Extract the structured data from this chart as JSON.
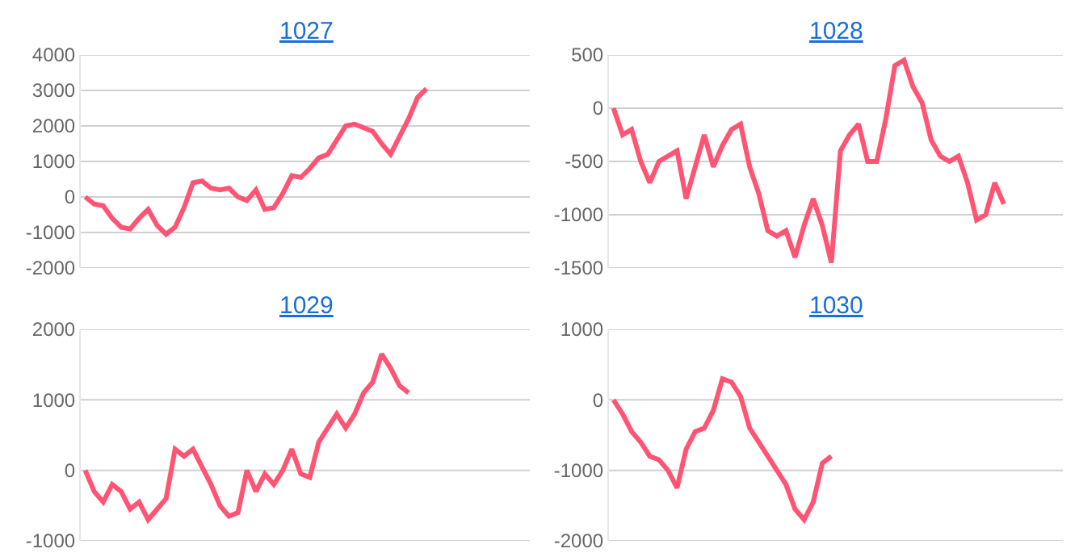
{
  "chart_data": [
    {
      "type": "line",
      "title": "1027",
      "categories": [
        null,
        null,
        null,
        null,
        null,
        null,
        null,
        null,
        null,
        null,
        null,
        null,
        null,
        null,
        null,
        null,
        null,
        null,
        null,
        null,
        null,
        null,
        null,
        null,
        null,
        null,
        null,
        null,
        null,
        null,
        null,
        null,
        null,
        null,
        null,
        null,
        null,
        null,
        null,
        null,
        null,
        null,
        null,
        null,
        null,
        null,
        null,
        null,
        null,
        null
      ],
      "ylim": [
        -2000,
        4000
      ],
      "yticks": [
        -2000,
        -1000,
        0,
        1000,
        2000,
        3000,
        4000
      ],
      "grid": "y",
      "tick_labels": "y",
      "marker": "none",
      "series": [
        {
          "color": "#ff5473",
          "values": [
            0,
            -200,
            -250,
            -600,
            -850,
            -900,
            -600,
            -350,
            -800,
            -1050,
            -850,
            -300,
            400,
            450,
            250,
            200,
            250,
            0,
            -100,
            200,
            -350,
            -300,
            100,
            600,
            550,
            800,
            1100,
            1200,
            1600,
            2000,
            2050,
            1950,
            1850,
            1500,
            1200,
            1700,
            2200,
            2800,
            3050,
            null,
            null,
            null,
            null,
            null,
            null,
            null,
            null,
            null,
            null,
            null
          ]
        }
      ]
    },
    {
      "type": "line",
      "title": "1028",
      "categories": [
        null,
        null,
        null,
        null,
        null,
        null,
        null,
        null,
        null,
        null,
        null,
        null,
        null,
        null,
        null,
        null,
        null,
        null,
        null,
        null,
        null,
        null,
        null,
        null,
        null,
        null,
        null,
        null,
        null,
        null,
        null,
        null,
        null,
        null,
        null,
        null,
        null,
        null,
        null,
        null,
        null,
        null,
        null,
        null,
        null,
        null,
        null,
        null,
        null,
        null
      ],
      "ylim": [
        -1500,
        500
      ],
      "yticks": [
        -1500,
        -1000,
        -500,
        0,
        500
      ],
      "grid": "y",
      "tick_labels": "y",
      "marker": "none",
      "series": [
        {
          "color": "#ff5473",
          "values": [
            0,
            -250,
            -200,
            -500,
            -700,
            -500,
            -450,
            -400,
            -850,
            -550,
            -250,
            -550,
            -350,
            -200,
            -150,
            -550,
            -800,
            -1150,
            -1200,
            -1150,
            -1400,
            -1100,
            -850,
            -1100,
            -1450,
            -400,
            -250,
            -150,
            -500,
            -500,
            -100,
            400,
            450,
            200,
            50,
            -300,
            -450,
            -500,
            -450,
            -700,
            -1050,
            -1000,
            -700,
            -900,
            null,
            null,
            null,
            null,
            null,
            null
          ]
        }
      ]
    },
    {
      "type": "line",
      "title": "1029",
      "categories": [
        null,
        null,
        null,
        null,
        null,
        null,
        null,
        null,
        null,
        null,
        null,
        null,
        null,
        null,
        null,
        null,
        null,
        null,
        null,
        null,
        null,
        null,
        null,
        null,
        null,
        null,
        null,
        null,
        null,
        null,
        null,
        null,
        null,
        null,
        null,
        null,
        null,
        null,
        null,
        null,
        null,
        null,
        null,
        null,
        null,
        null,
        null,
        null,
        null,
        null
      ],
      "ylim": [
        -1000,
        2000
      ],
      "yticks": [
        -1000,
        0,
        1000,
        2000
      ],
      "grid": "y",
      "tick_labels": "y",
      "marker": "none",
      "series": [
        {
          "color": "#ff5473",
          "values": [
            0,
            -300,
            -450,
            -200,
            -300,
            -550,
            -450,
            -700,
            -550,
            -400,
            300,
            200,
            300,
            50,
            -200,
            -500,
            -650,
            -600,
            0,
            -300,
            -50,
            -200,
            0,
            300,
            -50,
            -100,
            400,
            600,
            800,
            600,
            800,
            1100,
            1250,
            1650,
            1450,
            1200,
            1100,
            null,
            null,
            null,
            null,
            null,
            null,
            null,
            null,
            null,
            null,
            null,
            null,
            null
          ]
        }
      ]
    },
    {
      "type": "line",
      "title": "1030",
      "categories": [
        null,
        null,
        null,
        null,
        null,
        null,
        null,
        null,
        null,
        null,
        null,
        null,
        null,
        null,
        null,
        null,
        null,
        null,
        null,
        null,
        null,
        null,
        null,
        null,
        null,
        null,
        null,
        null,
        null,
        null,
        null,
        null,
        null,
        null,
        null,
        null,
        null,
        null,
        null,
        null,
        null,
        null,
        null,
        null,
        null,
        null,
        null,
        null,
        null,
        null
      ],
      "ylim": [
        -2000,
        1000
      ],
      "yticks": [
        -2000,
        -1000,
        0,
        1000
      ],
      "grid": "y",
      "tick_labels": "y",
      "marker": "none",
      "series": [
        {
          "color": "#ff5473",
          "values": [
            0,
            -200,
            -450,
            -600,
            -800,
            -850,
            -1000,
            -1250,
            -700,
            -450,
            -400,
            -150,
            300,
            250,
            50,
            -400,
            -600,
            -800,
            -1000,
            -1200,
            -1550,
            -1700,
            -1450,
            -900,
            -800,
            null,
            null,
            null,
            null,
            null,
            null,
            null,
            null,
            null,
            null,
            null,
            null,
            null,
            null,
            null,
            null,
            null,
            null,
            null,
            null,
            null,
            null,
            null,
            null,
            null
          ]
        }
      ]
    }
  ]
}
